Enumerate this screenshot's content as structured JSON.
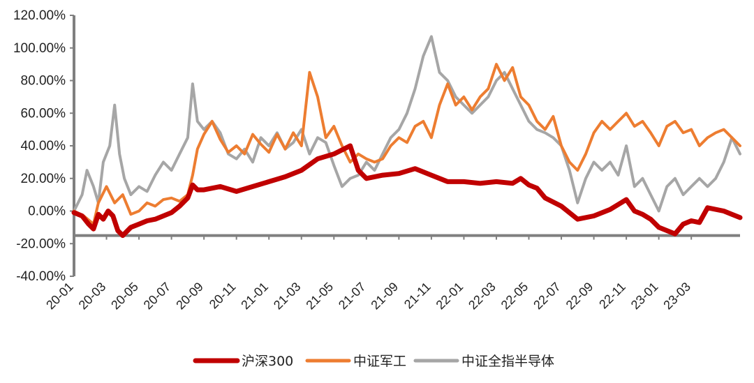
{
  "chart_data": {
    "type": "line",
    "title": "",
    "xlabel": "",
    "ylabel": "",
    "ylim": [
      -40,
      120
    ],
    "y_ticks": [
      "120.00%",
      "100.00%",
      "80.00%",
      "60.00%",
      "40.00%",
      "20.00%",
      "0.00%",
      "-20.00%",
      "-40.00%"
    ],
    "y_tick_values": [
      120,
      100,
      80,
      60,
      40,
      20,
      0,
      -20,
      -40
    ],
    "x_baseline_value": -15,
    "x_ticks": [
      "20-01",
      "20-03",
      "20-05",
      "20-07",
      "20-09",
      "20-11",
      "21-01",
      "21-03",
      "21-05",
      "21-07",
      "21-09",
      "21-11",
      "22-01",
      "22-03",
      "22-05",
      "22-07",
      "22-09",
      "22-11",
      "23-01",
      "23-03"
    ],
    "x_range_months": [
      0,
      41
    ],
    "legend_position": "bottom",
    "series": [
      {
        "name": "沪深300",
        "color": "#C00000",
        "x": [
          0,
          0.5,
          0.9,
          1.2,
          1.5,
          1.8,
          2.1,
          2.4,
          2.7,
          3,
          3.5,
          4,
          4.5,
          5,
          5.5,
          6,
          6.5,
          7,
          7.3,
          7.6,
          8,
          9,
          10,
          11,
          12,
          13,
          14,
          15,
          16,
          17,
          17.5,
          18,
          18.5,
          19,
          20,
          21,
          22,
          23,
          24,
          25,
          26,
          27,
          27.5,
          28,
          28.5,
          29,
          30,
          31,
          32,
          33,
          34,
          34.5,
          35,
          35.5,
          36,
          37,
          37.5,
          38,
          38.5,
          39,
          40,
          40.5,
          41
        ],
        "values": [
          -1,
          -3,
          -8,
          -11,
          -2,
          -5,
          0,
          -3,
          -12,
          -15,
          -10,
          -8,
          -6,
          -5,
          -3,
          -1,
          3,
          8,
          16,
          13,
          13,
          15,
          12,
          15,
          18,
          21,
          25,
          32,
          35,
          40,
          25,
          20,
          21,
          22,
          23,
          26,
          22,
          18,
          18,
          17,
          18,
          17,
          20,
          16,
          14,
          8,
          3,
          -5,
          -3,
          1,
          7,
          0,
          -2,
          -5,
          -10,
          -14,
          -8,
          -6,
          -7,
          2,
          0,
          -2,
          -4
        ]
      },
      {
        "name": "中证军工",
        "color": "#ED7D31",
        "x": [
          0,
          0.6,
          1.2,
          1.5,
          2,
          2.5,
          3,
          3.5,
          4,
          4.5,
          5,
          5.5,
          6,
          6.5,
          7,
          7.3,
          7.6,
          8,
          8.5,
          9,
          9.5,
          10,
          10.5,
          11,
          11.5,
          12,
          12.5,
          13,
          13.5,
          14,
          14.5,
          15,
          15.5,
          16,
          16.5,
          17,
          17.5,
          18,
          18.5,
          19,
          19.5,
          20,
          20.5,
          21,
          21.5,
          22,
          22.5,
          23,
          23.5,
          24,
          24.5,
          25,
          25.5,
          26,
          26.5,
          27,
          27.5,
          28,
          28.5,
          29,
          29.5,
          30,
          30.5,
          31,
          31.5,
          32,
          32.5,
          33,
          33.5,
          34,
          34.5,
          35,
          35.5,
          36,
          36.5,
          37,
          37.5,
          38,
          38.5,
          39,
          39.5,
          40,
          40.5,
          41
        ],
        "values": [
          0,
          -3,
          -8,
          5,
          15,
          5,
          10,
          -2,
          0,
          5,
          3,
          7,
          8,
          6,
          10,
          22,
          38,
          47,
          55,
          44,
          36,
          40,
          35,
          47,
          41,
          36,
          47,
          38,
          48,
          40,
          85,
          70,
          45,
          52,
          40,
          30,
          35,
          32,
          30,
          32,
          40,
          45,
          42,
          52,
          55,
          45,
          65,
          78,
          65,
          70,
          62,
          70,
          75,
          90,
          80,
          88,
          70,
          65,
          55,
          50,
          58,
          40,
          30,
          25,
          35,
          48,
          55,
          50,
          55,
          60,
          52,
          55,
          48,
          40,
          52,
          55,
          48,
          50,
          40,
          45,
          48,
          50,
          45,
          40
        ]
      },
      {
        "name": "中证全指半导体",
        "color": "#A6A6A6",
        "x": [
          0,
          0.5,
          0.8,
          1.2,
          1.5,
          1.8,
          2.2,
          2.5,
          2.8,
          3.1,
          3.5,
          4,
          4.5,
          5,
          5.5,
          6,
          6.5,
          7,
          7.3,
          7.6,
          8,
          8.5,
          9,
          9.5,
          10,
          10.5,
          11,
          11.5,
          12,
          12.5,
          13,
          13.5,
          14,
          14.5,
          15,
          15.5,
          16,
          16.5,
          17,
          17.5,
          18,
          18.5,
          19,
          19.5,
          20,
          20.5,
          21,
          21.5,
          22,
          22.5,
          23,
          23.5,
          24,
          24.5,
          25,
          25.5,
          26,
          26.5,
          27,
          27.5,
          28,
          28.5,
          29,
          29.5,
          30,
          30.5,
          31,
          31.5,
          32,
          32.5,
          33,
          33.5,
          34,
          34.5,
          35,
          35.5,
          36,
          36.5,
          37,
          37.5,
          38,
          38.5,
          39,
          39.5,
          40,
          40.5,
          41
        ],
        "values": [
          0,
          10,
          25,
          15,
          5,
          30,
          40,
          65,
          35,
          20,
          10,
          15,
          12,
          22,
          30,
          25,
          35,
          45,
          78,
          55,
          50,
          55,
          48,
          35,
          32,
          38,
          30,
          45,
          40,
          48,
          38,
          42,
          50,
          35,
          45,
          42,
          28,
          15,
          20,
          22,
          30,
          25,
          35,
          45,
          50,
          60,
          75,
          95,
          107,
          85,
          80,
          70,
          65,
          60,
          65,
          70,
          80,
          85,
          75,
          65,
          55,
          50,
          48,
          45,
          40,
          25,
          5,
          20,
          30,
          25,
          30,
          22,
          40,
          15,
          20,
          10,
          0,
          15,
          20,
          10,
          15,
          20,
          15,
          20,
          30,
          45,
          35
        ]
      }
    ]
  }
}
